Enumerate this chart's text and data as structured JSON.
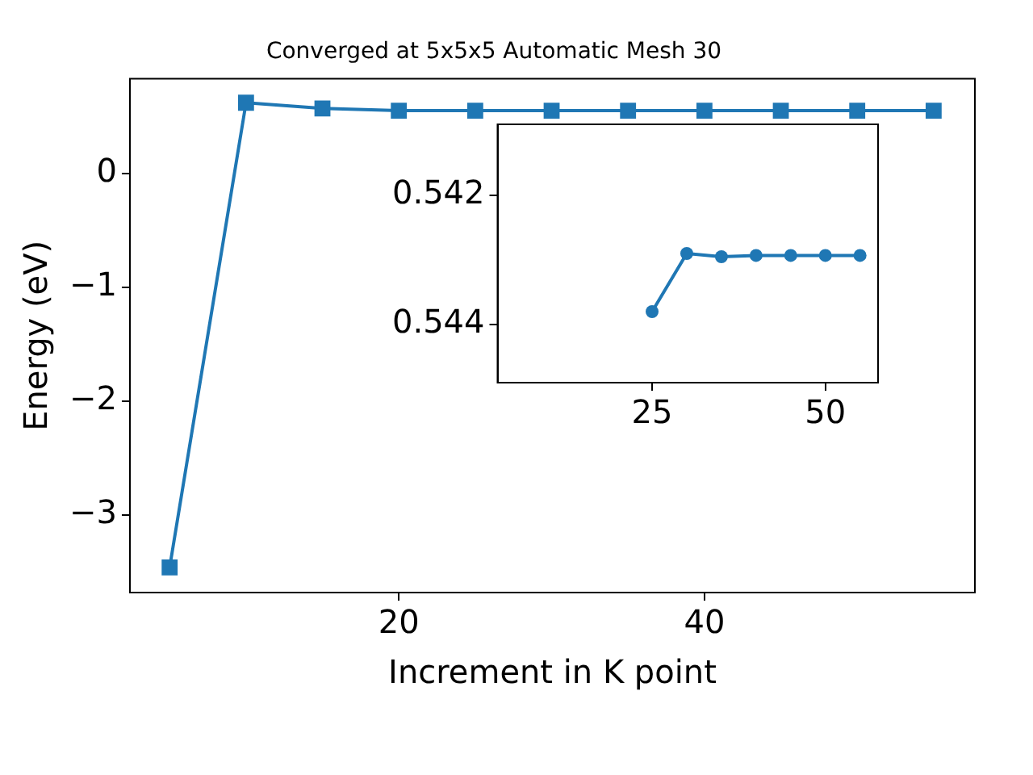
{
  "chart_data": [
    {
      "type": "line",
      "title": "Converged at 5x5x5 Automatic Mesh 30",
      "xlabel": "Increment in K point",
      "ylabel": "Energy (eV)",
      "x": [
        5,
        10,
        15,
        20,
        25,
        30,
        35,
        40,
        45,
        50,
        55
      ],
      "series": [
        {
          "color": "#1f77b4",
          "values": [
            -3.46,
            0.62,
            0.57,
            0.55,
            0.55,
            0.55,
            0.55,
            0.55,
            0.55,
            0.55,
            0.55
          ]
        }
      ],
      "xlim": [
        2.4,
        57.7
      ],
      "xticks": [
        20,
        40
      ],
      "ylim": [
        -3.68,
        0.83
      ],
      "yticks": [
        {
          "value": -3,
          "label": "−3"
        },
        {
          "value": -2,
          "label": "−2"
        },
        {
          "value": -1,
          "label": "−1"
        },
        0
      ],
      "marker": "square",
      "grid": false,
      "legend": false
    },
    {
      "type": "line",
      "x": [
        25,
        30,
        35,
        40,
        45,
        50,
        55
      ],
      "series": [
        {
          "color": "#1f77b4",
          "values": [
            0.5438,
            0.5429,
            0.54295,
            0.54293,
            0.54293,
            0.54293,
            0.54293
          ]
        }
      ],
      "xlim": [
        2.7,
        57.6
      ],
      "xticks": [
        25,
        50
      ],
      "ylim": [
        0.5449,
        0.5409
      ],
      "yticks": [
        0.542,
        0.544
      ],
      "marker": "circle",
      "grid": false,
      "legend": false
    }
  ]
}
